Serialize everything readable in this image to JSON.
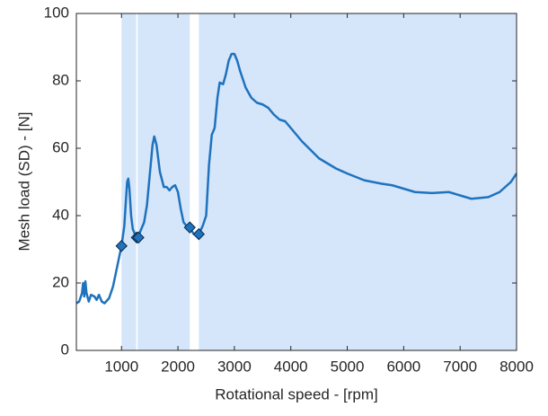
{
  "chart_data": {
    "type": "line",
    "xlabel": "Rotational speed - [rpm]",
    "ylabel": "Mesh load (SD) - [N]",
    "xlim": [
      200,
      8000
    ],
    "xticks": [
      1000,
      2000,
      3000,
      4000,
      5000,
      6000,
      7000,
      8000
    ],
    "ylim": [
      0,
      100
    ],
    "yticks": [
      0,
      20,
      40,
      60,
      80,
      100
    ],
    "regions": [
      [
        1000,
        1260
      ],
      [
        1285,
        2210
      ],
      [
        2370,
        8000
      ]
    ],
    "region_color": "#d5e6fb",
    "series": [
      {
        "color": "#1f72bd",
        "x": [
          200,
          250,
          300,
          320,
          340,
          360,
          380,
          420,
          460,
          520,
          560,
          600,
          650,
          700,
          780,
          850,
          900,
          950,
          1000,
          1050,
          1080,
          1100,
          1120,
          1140,
          1170,
          1200,
          1250,
          1300,
          1350,
          1400,
          1450,
          1500,
          1550,
          1580,
          1620,
          1680,
          1750,
          1800,
          1850,
          1900,
          1950,
          2000,
          2050,
          2100,
          2150,
          2210,
          2280,
          2370,
          2440,
          2500,
          2550,
          2600,
          2650,
          2700,
          2740,
          2800,
          2850,
          2900,
          2950,
          3000,
          3050,
          3100,
          3200,
          3300,
          3400,
          3500,
          3600,
          3700,
          3800,
          3900,
          4000,
          4200,
          4500,
          4800,
          5000,
          5300,
          5600,
          5800,
          6000,
          6200,
          6500,
          6800,
          7000,
          7200,
          7500,
          7700,
          7900,
          8000
        ],
        "values": [
          14,
          14.5,
          17,
          20,
          16,
          20.5,
          17,
          14.5,
          16.5,
          16,
          15,
          16.5,
          14.5,
          14,
          15.5,
          19,
          23,
          27,
          31,
          37,
          45,
          50,
          51,
          48,
          40,
          36,
          34,
          34,
          36,
          38,
          43,
          52,
          61,
          63.5,
          61,
          53,
          48.5,
          48.5,
          47.5,
          48.5,
          49,
          47,
          42,
          38,
          37,
          36.5,
          34.5,
          34.5,
          37,
          40,
          55,
          64,
          66,
          75,
          79.5,
          79,
          82,
          86,
          88,
          88,
          86,
          83,
          78,
          75,
          73.5,
          73,
          72,
          70,
          68.5,
          68,
          66,
          62,
          57,
          54,
          52.5,
          50.5,
          49.5,
          49,
          48,
          47,
          46.7,
          47,
          46,
          45,
          45.5,
          47,
          50,
          52.5
        ]
      },
      {
        "type": "scatter",
        "color": "#1f72bd",
        "x": [
          1000,
          1270,
          1300,
          2210,
          2370
        ],
        "values": [
          31,
          33.5,
          33.5,
          36.5,
          34.5
        ]
      }
    ]
  }
}
